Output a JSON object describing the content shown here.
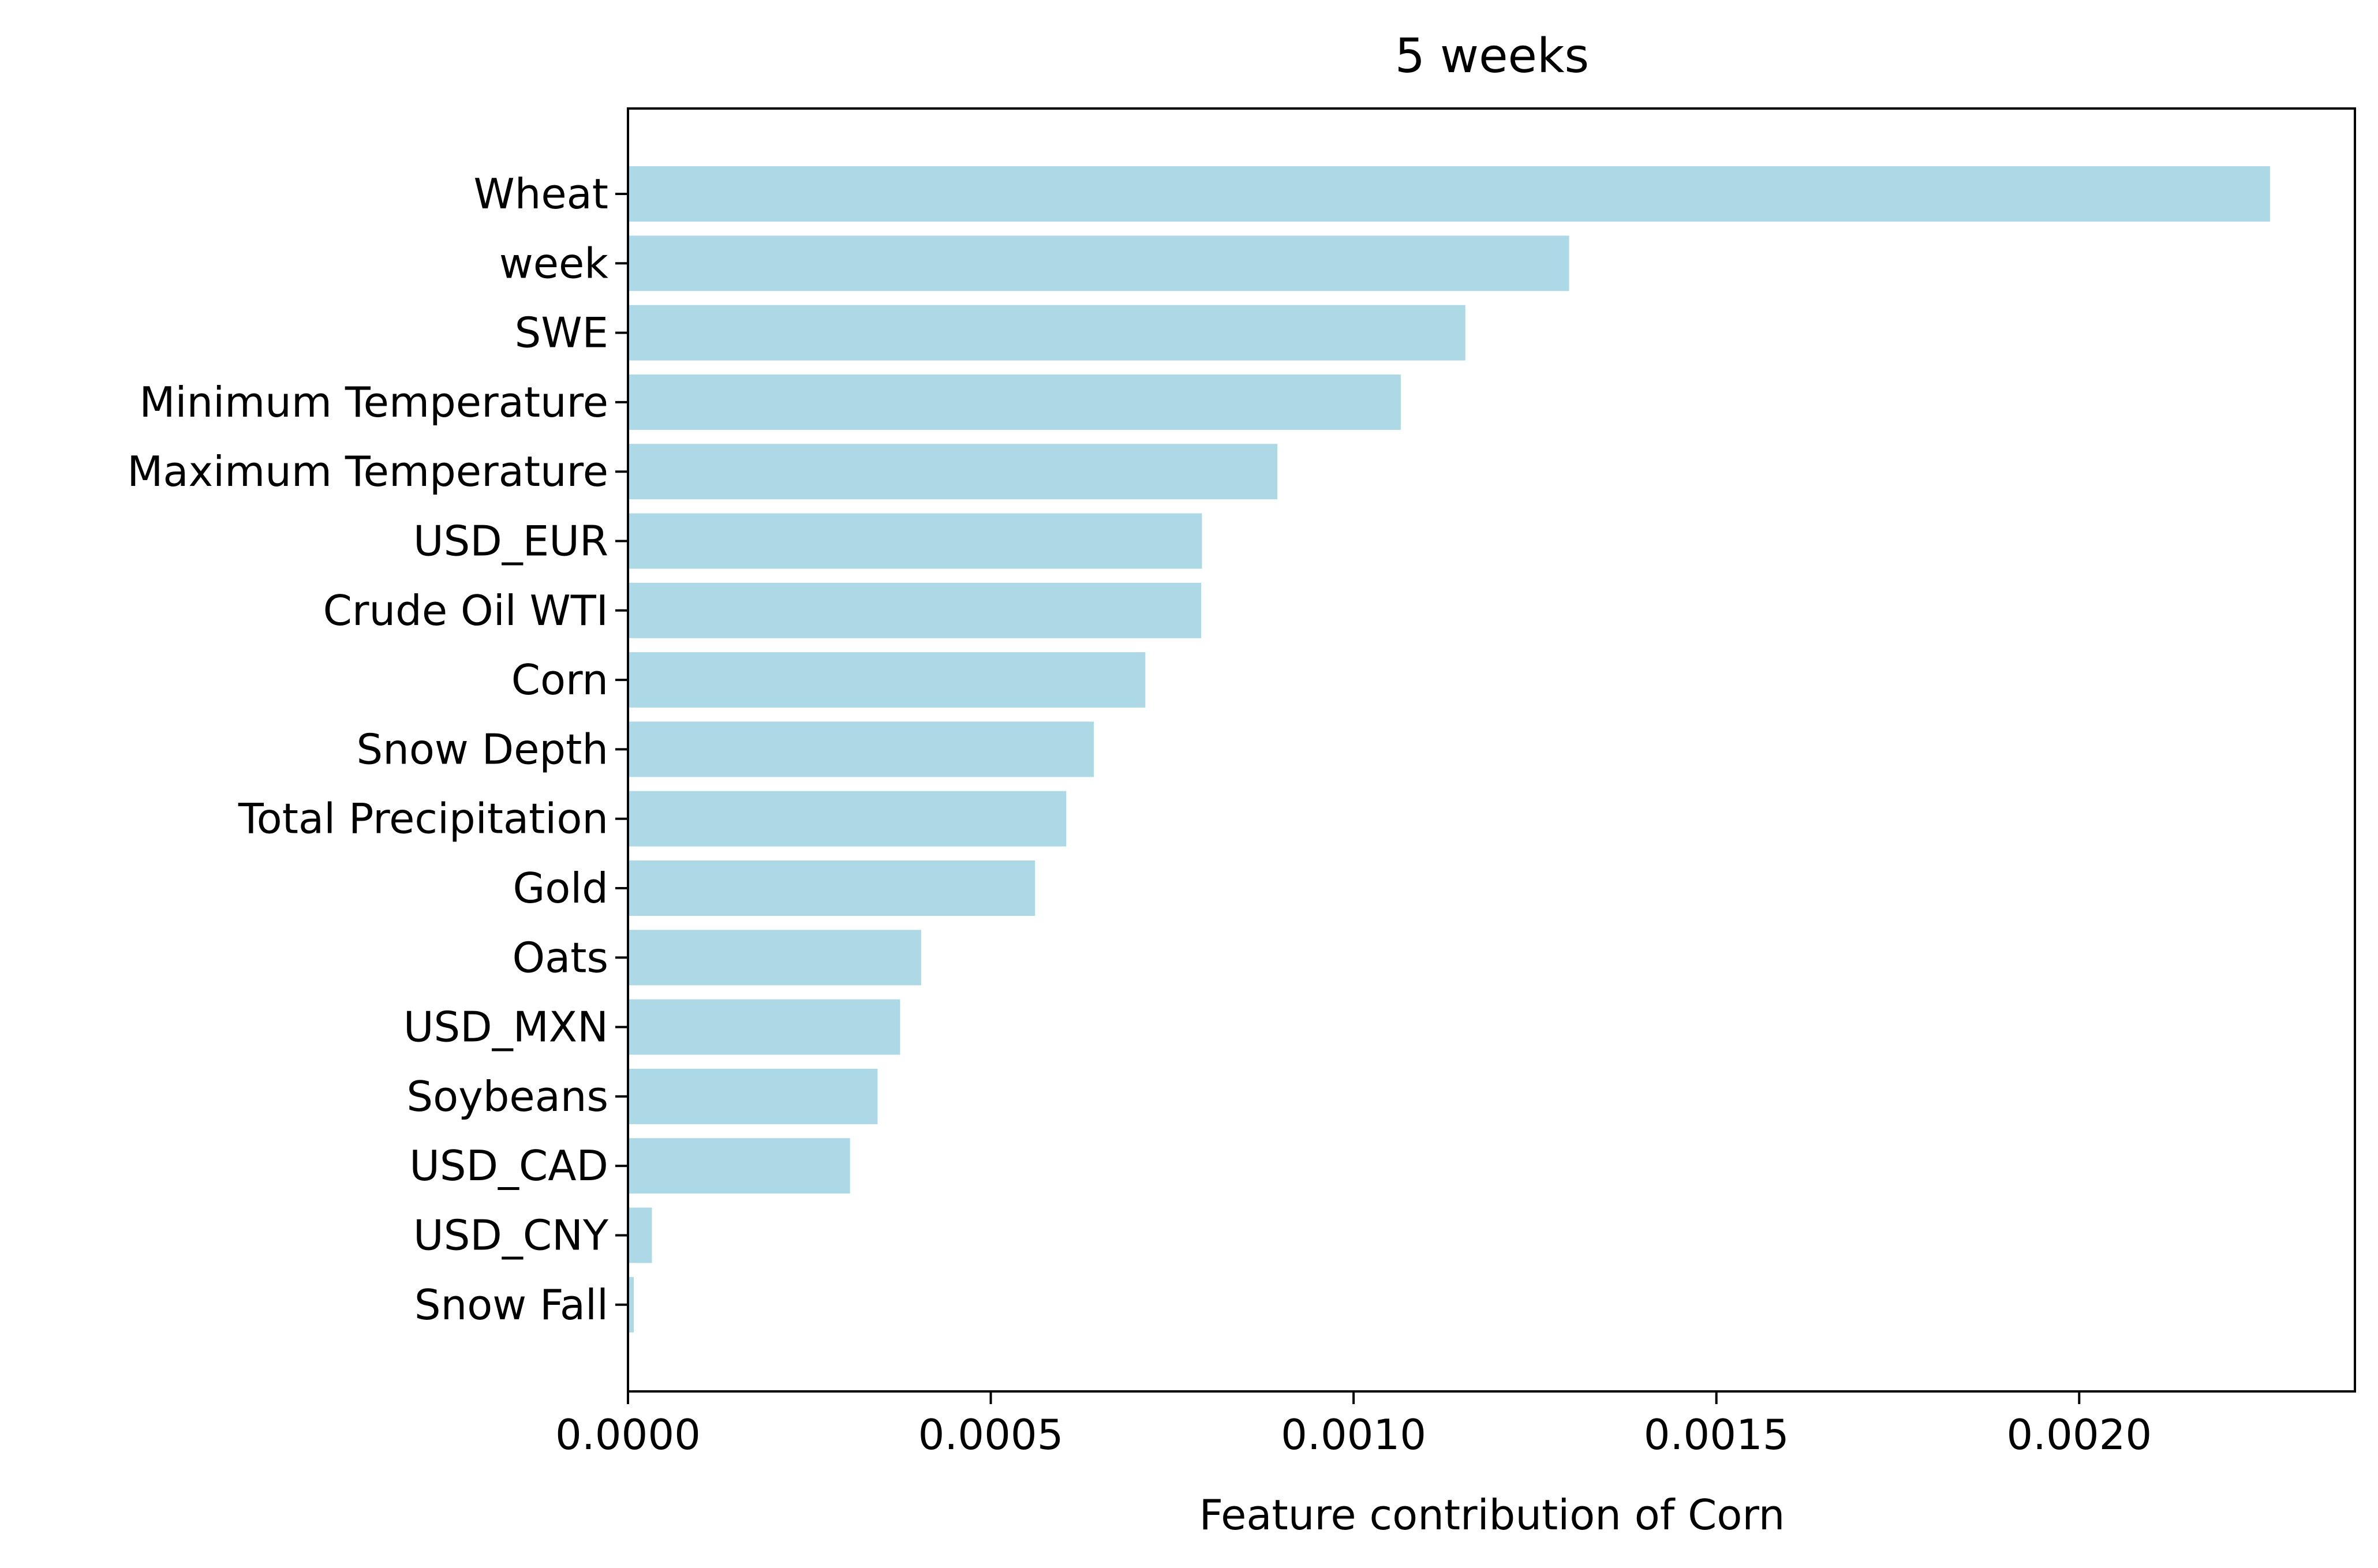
{
  "chart_data": {
    "type": "bar",
    "orientation": "horizontal",
    "title": "5 weeks",
    "xlabel": "Feature contribution of Corn",
    "ylabel": "",
    "xlim": [
      0,
      0.00238
    ],
    "x_ticks": [
      0.0,
      0.0005,
      0.001,
      0.0015,
      0.002
    ],
    "x_tick_labels": [
      "0.0000",
      "0.0005",
      "0.0010",
      "0.0015",
      "0.0020"
    ],
    "categories": [
      "Wheat",
      "week",
      "SWE",
      "Minimum Temperature",
      "Maximum Temperature",
      "USD_EUR",
      "Crude Oil WTI",
      "Corn",
      "Snow Depth",
      "Total Precipitation",
      "Gold",
      "Oats",
      "USD_MXN",
      "Soybeans",
      "USD_CAD",
      "USD_CNY",
      "Snow Fall"
    ],
    "values": [
      0.002263,
      0.001297,
      0.001154,
      0.001065,
      0.000895,
      0.000791,
      0.00079,
      0.000713,
      0.000642,
      0.000604,
      0.000561,
      0.000404,
      0.000375,
      0.000344,
      0.000306,
      3.3e-05,
      8e-06
    ],
    "bar_color": "#add8e6",
    "grid": false,
    "legend": "none"
  }
}
